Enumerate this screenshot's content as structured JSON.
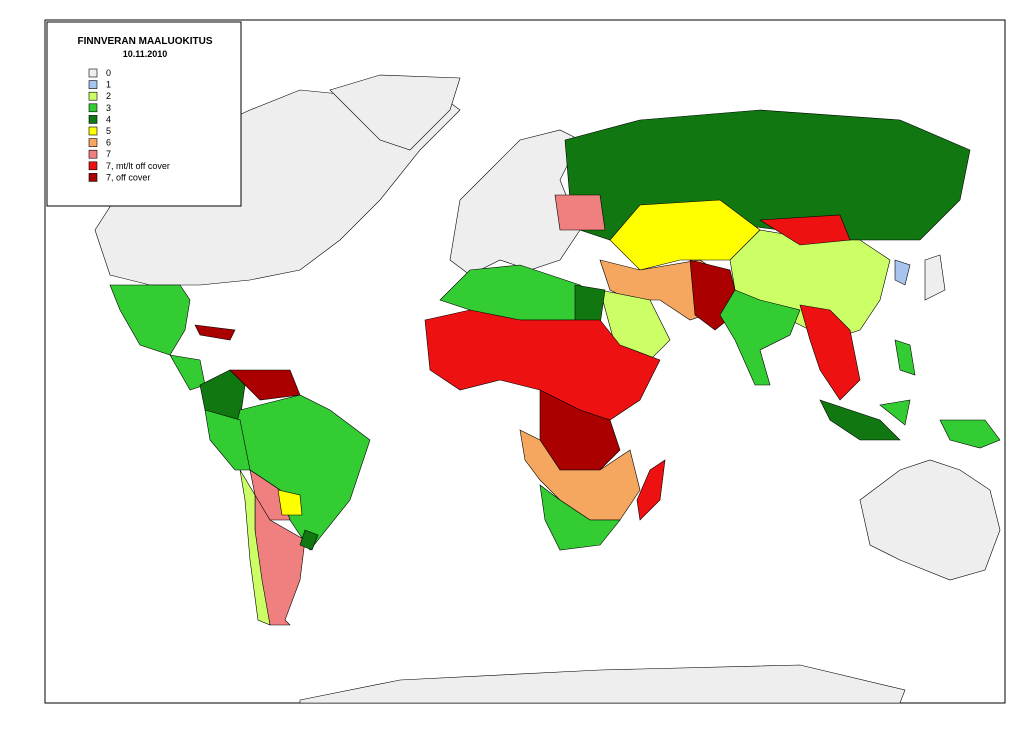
{
  "legend": {
    "title": "FINNVERAN MAALUOKITUS",
    "date": "10.11.2010",
    "items": [
      {
        "label": "0",
        "color": "#eeeeee"
      },
      {
        "label": "1",
        "color": "#a6c4ee"
      },
      {
        "label": "2",
        "color": "#ccff66"
      },
      {
        "label": "3",
        "color": "#33cc33"
      },
      {
        "label": "4",
        "color": "#117711"
      },
      {
        "label": "5",
        "color": "#ffff00"
      },
      {
        "label": "6",
        "color": "#f5a760"
      },
      {
        "label": "7",
        "color": "#f08080"
      },
      {
        "label": "7, mt/lt off cover",
        "color": "#ee1111"
      },
      {
        "label": "7, off cover",
        "color": "#aa0000"
      }
    ]
  }
}
